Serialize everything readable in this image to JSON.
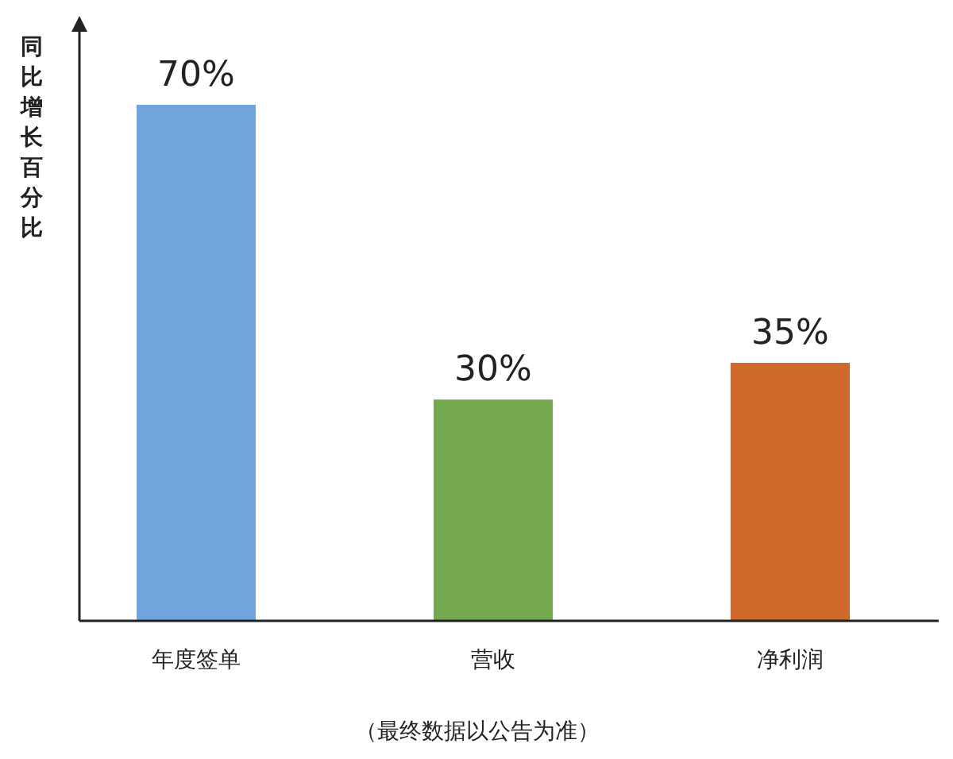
{
  "chart_data": {
    "type": "bar",
    "ylabel": "同比增长百分比",
    "categories": [
      "年度签单",
      "营收",
      "净利润"
    ],
    "values": [
      70,
      30,
      35
    ],
    "colors": [
      "#6fa4dd",
      "#74a84e",
      "#cf6a2a"
    ],
    "value_labels": [
      "70%",
      "30%",
      "35%"
    ],
    "annotations": [
      "（最终数据以公告为准）"
    ]
  }
}
